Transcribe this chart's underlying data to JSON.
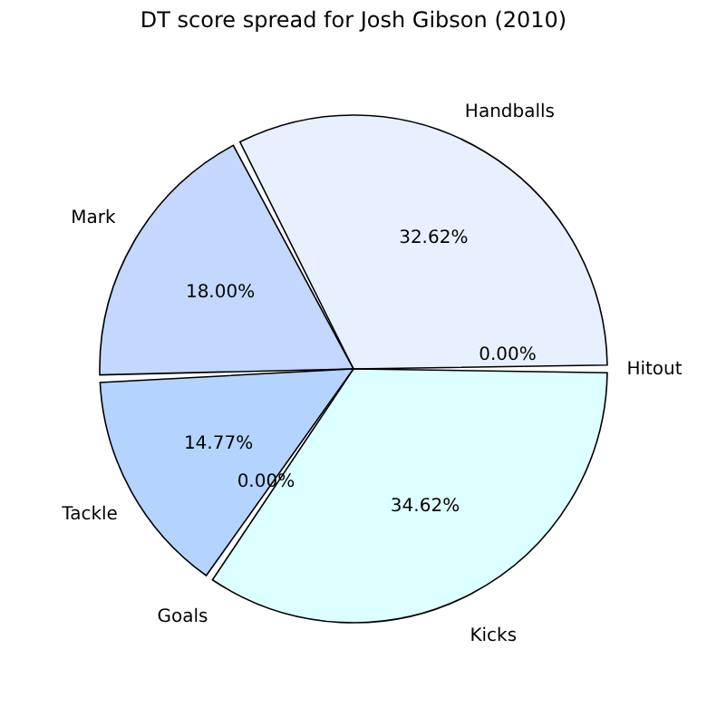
{
  "chart_data": {
    "type": "pie",
    "title": "DT score spread for Josh Gibson (2010)",
    "categories": [
      "Handballs",
      "Mark",
      "Tackle",
      "Goals",
      "Kicks",
      "Hitout"
    ],
    "values": [
      32.62,
      18.0,
      14.77,
      0.0,
      34.62,
      0.0
    ],
    "value_labels": [
      "32.62%",
      "18.00%",
      "14.77%",
      "0.00%",
      "34.62%",
      "0.00%"
    ],
    "colors": [
      "#e8f0ff",
      "#c4d8ff",
      "#b4d4ff",
      "#a4c4ff",
      "#dcffff",
      "#f0f8ff"
    ],
    "legend": false
  }
}
